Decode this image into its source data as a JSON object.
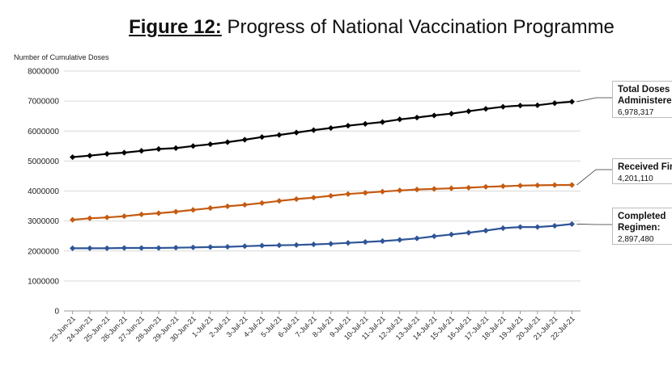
{
  "title_prefix": "Figure 12:",
  "title_rest": " Progress of National Vaccination Programme",
  "chart_data": {
    "type": "line",
    "title": "Figure 12: Progress of National Vaccination Programme",
    "ylabel": "Number of Cumulative Doses",
    "xlabel": "",
    "ylim": [
      0,
      8000000
    ],
    "yticks": [
      0,
      1000000,
      2000000,
      3000000,
      4000000,
      5000000,
      6000000,
      7000000,
      8000000
    ],
    "grid": true,
    "categories": [
      "23-Jun-21",
      "24-Jun-21",
      "25-Jun-21",
      "26-Jun-21",
      "27-Jun-21",
      "28-Jun-21",
      "29-Jun-21",
      "30-Jun-21",
      "1-Jul-21",
      "2-Jul-21",
      "3-Jul-21",
      "4-Jul-21",
      "5-Jul-21",
      "6-Jul-21",
      "7-Jul-21",
      "8-Jul-21",
      "9-Jul-21",
      "10-Jul-21",
      "11-Jul-21",
      "12-Jul-21",
      "13-Jul-21",
      "14-Jul-21",
      "15-Jul-21",
      "16-Jul-21",
      "17-Jul-21",
      "18-Jul-21",
      "19-Jul-21",
      "20-Jul-21",
      "21-Jul-21",
      "22-Jul-21"
    ],
    "series": [
      {
        "name": "Total Doses Administered",
        "color": "#000000",
        "callout_label": "Total Doses Administered",
        "callout_value": "6,978,317",
        "values": [
          5130000,
          5180000,
          5240000,
          5280000,
          5340000,
          5400000,
          5430000,
          5500000,
          5560000,
          5630000,
          5710000,
          5800000,
          5870000,
          5950000,
          6030000,
          6100000,
          6180000,
          6240000,
          6300000,
          6390000,
          6450000,
          6520000,
          6580000,
          6660000,
          6740000,
          6810000,
          6850000,
          6860000,
          6930000,
          6978317
        ]
      },
      {
        "name": "Received First Dose",
        "color": "#C55A11",
        "callout_label": "Received First Dose",
        "callout_value": "4,201,110",
        "values": [
          3040000,
          3090000,
          3120000,
          3160000,
          3220000,
          3260000,
          3310000,
          3370000,
          3430000,
          3490000,
          3540000,
          3600000,
          3670000,
          3730000,
          3780000,
          3840000,
          3900000,
          3940000,
          3980000,
          4020000,
          4050000,
          4070000,
          4090000,
          4110000,
          4140000,
          4160000,
          4180000,
          4190000,
          4200000,
          4201110
        ]
      },
      {
        "name": "Completed Regimen",
        "color": "#2F5597",
        "callout_label": "Completed Regimen:",
        "callout_value": "2,897,480",
        "values": [
          2090000,
          2090000,
          2090000,
          2100000,
          2100000,
          2100000,
          2110000,
          2120000,
          2130000,
          2140000,
          2160000,
          2180000,
          2190000,
          2200000,
          2220000,
          2240000,
          2270000,
          2300000,
          2330000,
          2370000,
          2420000,
          2490000,
          2550000,
          2610000,
          2680000,
          2760000,
          2800000,
          2800000,
          2840000,
          2897480
        ]
      }
    ]
  }
}
